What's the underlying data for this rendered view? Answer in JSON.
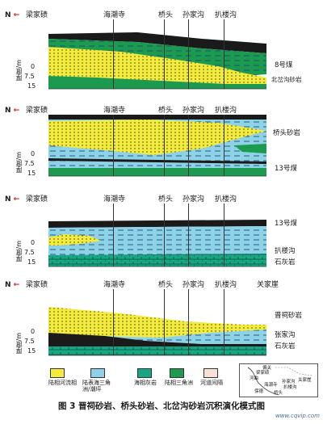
{
  "north_label": "N",
  "locations": [
    "梁家碛",
    "海潮寺",
    "桥头",
    "孙家沟",
    "扒楼沟"
  ],
  "locations_last_panel": [
    "梁家碛",
    "海潮寺",
    "桥头",
    "孙家沟",
    "扒楼沟",
    "关家崖"
  ],
  "y_axis": {
    "title": "厚度/m",
    "ticks": [
      "0",
      "7.5",
      "15"
    ]
  },
  "panels": [
    {
      "id": "p1",
      "labels": [
        "8号煤",
        "北岔沟砂岩"
      ]
    },
    {
      "id": "p2",
      "labels": [
        "桥头砂岩",
        "13号煤"
      ]
    },
    {
      "id": "p3",
      "labels": [
        "13号煤",
        "扒楼沟",
        "石灰岩"
      ]
    },
    {
      "id": "p4",
      "labels": [
        "晋祠砂岩",
        "张家沟",
        "石灰岩"
      ]
    }
  ],
  "legend": [
    {
      "label": "陆相河流相",
      "color": "#f3ec3a"
    },
    {
      "label": "陆表海三角洲/潮坪",
      "color": "#8ed2e8"
    },
    {
      "label": "海相灰岩",
      "color": "#18a784"
    },
    {
      "label": "陆相三角洲",
      "color": "#1c9a4f"
    },
    {
      "label": "河道间隔",
      "color": "#fbe0d8"
    }
  ],
  "inset_map": {
    "labels": [
      "偏关",
      "梁家碛",
      "河曲",
      "保德",
      "海潮寺",
      "孙家沟",
      "扒楼沟",
      "桥头",
      "关家崖"
    ]
  },
  "colors": {
    "yellow": "#f3ec3a",
    "blue": "#8ed2e8",
    "green": "#1c9a4f",
    "dark": "#1a1a1a",
    "north_arrow": "#d42020"
  },
  "caption": "图 3   晋祠砂岩、桥头砂岩、北岔沟砂岩沉积演化模式图",
  "watermark": "www.cqvip.com"
}
